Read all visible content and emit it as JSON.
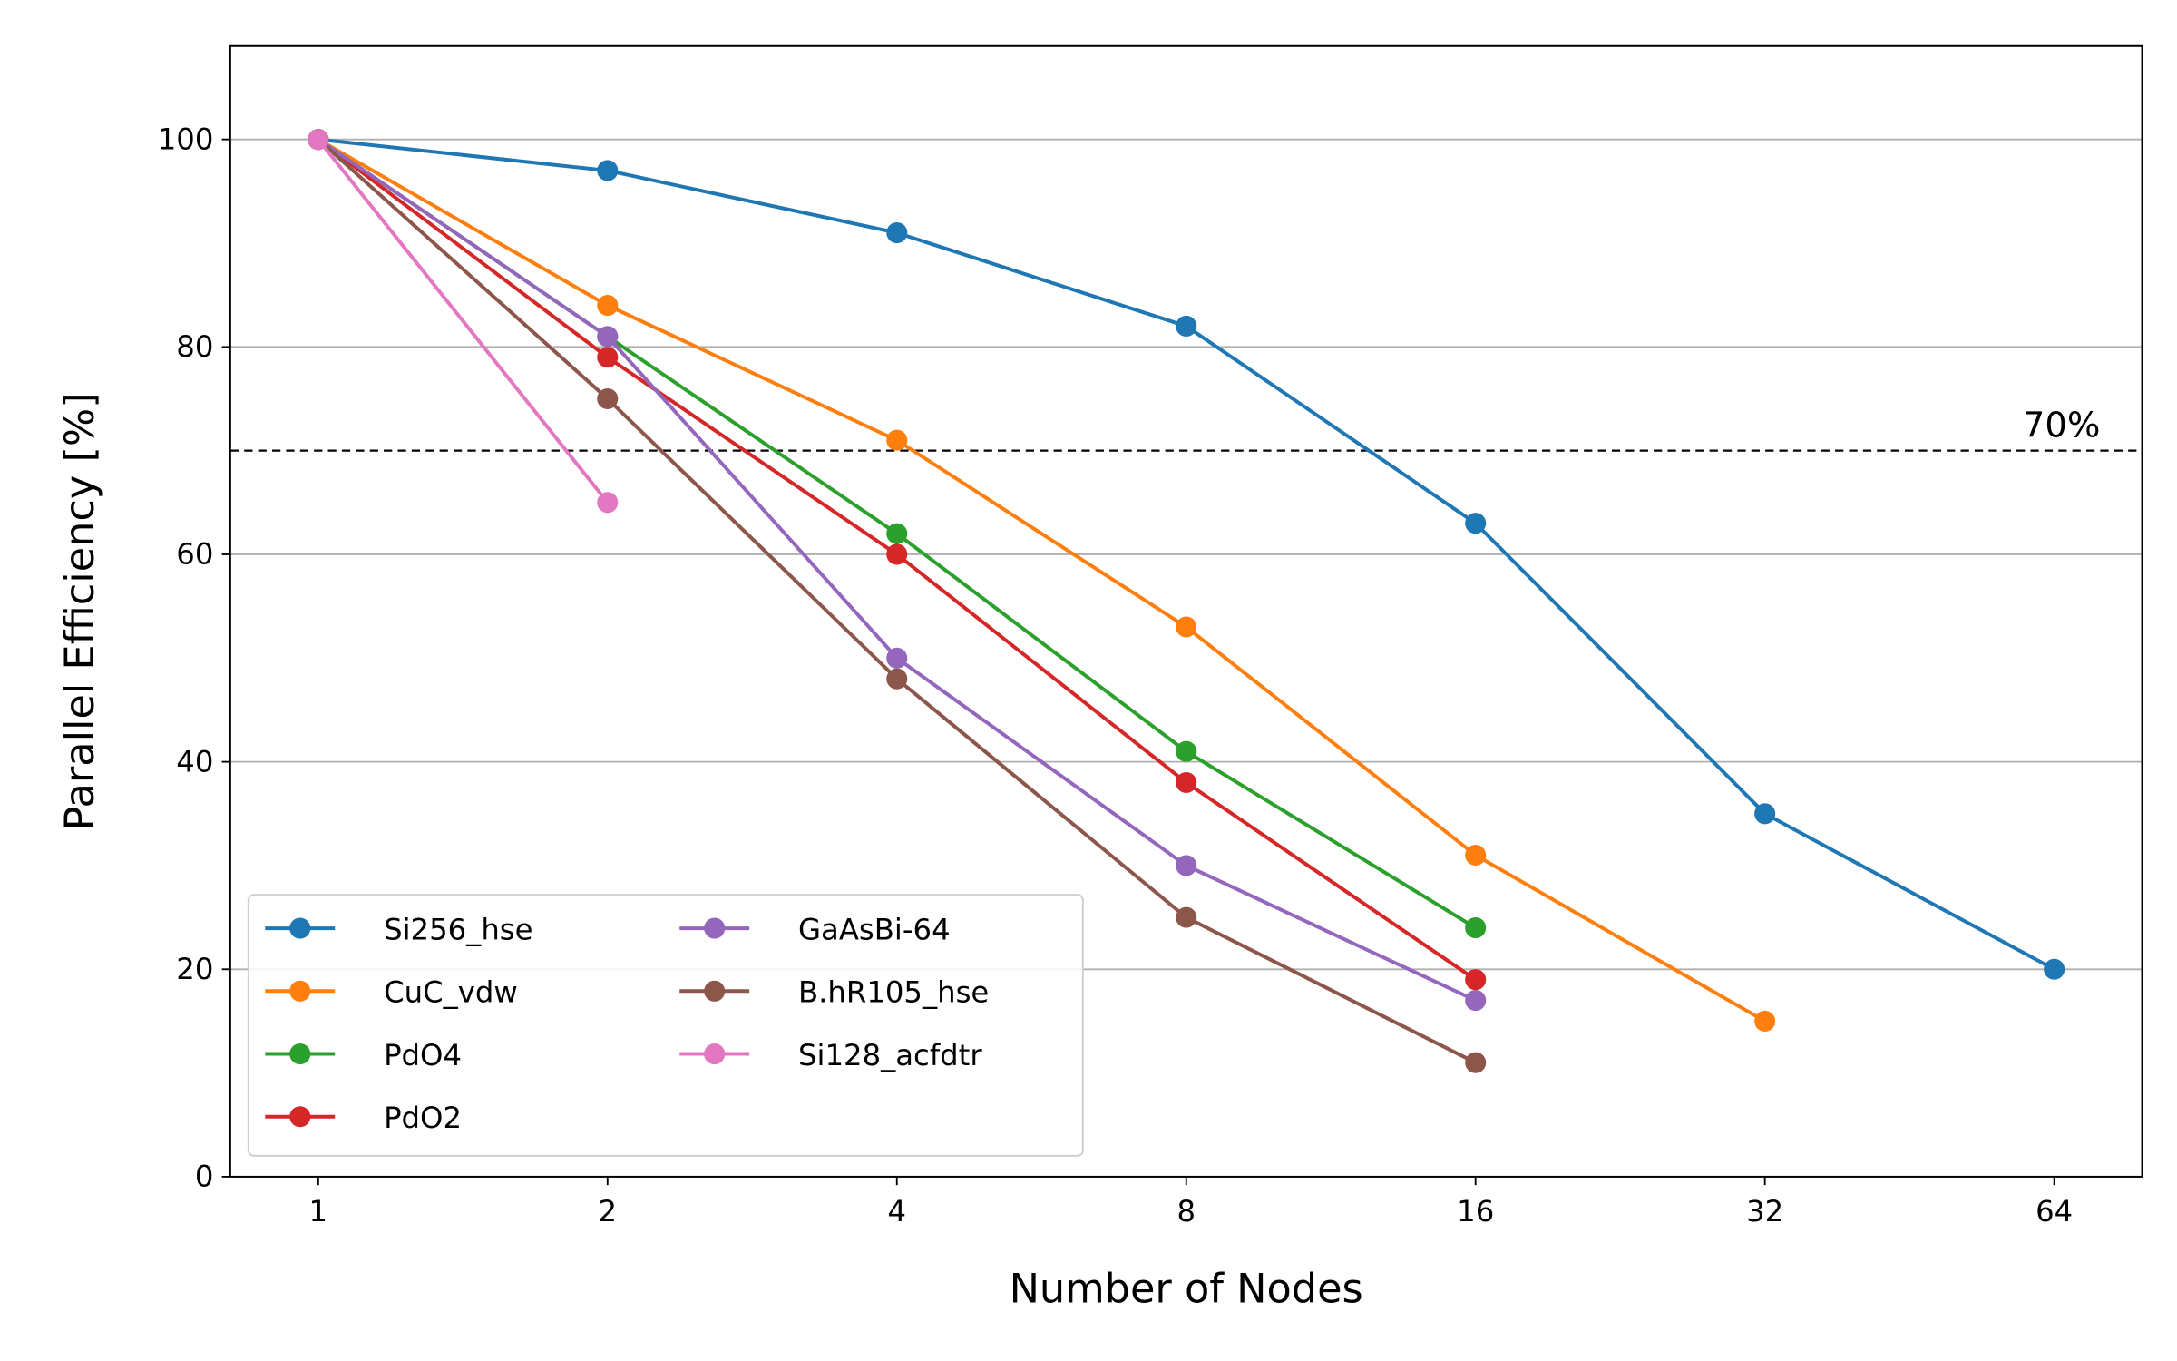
{
  "chart_data": {
    "type": "line",
    "title": "",
    "xlabel": "Number of Nodes",
    "ylabel": "Parallel Efficiency [%]",
    "x_scale": "log2",
    "x": [
      1,
      2,
      4,
      8,
      16,
      32,
      64
    ],
    "x_tick_labels": [
      "1",
      "2",
      "4",
      "8",
      "16",
      "32",
      "64"
    ],
    "xlim": [
      0.81,
      79
    ],
    "ylim": [
      0,
      109
    ],
    "y_ticks": [
      0,
      20,
      40,
      60,
      80,
      100
    ],
    "y_tick_labels": [
      "0",
      "20",
      "40",
      "60",
      "80",
      "100"
    ],
    "grid": "horizontal",
    "legend_placement": "lower-left",
    "reference_line": {
      "y": 70,
      "label": "70%",
      "style": "dashed",
      "color": "#000000"
    },
    "series": [
      {
        "name": "Si256_hse",
        "color": "#1f77b4",
        "x": [
          1,
          2,
          4,
          8,
          16,
          32,
          64
        ],
        "values": [
          100,
          97,
          91,
          82,
          63,
          35,
          20
        ]
      },
      {
        "name": "CuC_vdw",
        "color": "#ff7f0e",
        "x": [
          1,
          2,
          4,
          8,
          16,
          32
        ],
        "values": [
          100,
          84,
          71,
          53,
          31,
          15
        ]
      },
      {
        "name": "PdO4",
        "color": "#2ca02c",
        "x": [
          1,
          2,
          4,
          8,
          16
        ],
        "values": [
          100,
          81,
          62,
          41,
          24
        ]
      },
      {
        "name": "PdO2",
        "color": "#d62728",
        "x": [
          1,
          2,
          4,
          8,
          16
        ],
        "values": [
          100,
          79,
          60,
          38,
          19
        ]
      },
      {
        "name": "GaAsBi-64",
        "color": "#9467bd",
        "x": [
          1,
          2,
          4,
          8,
          16
        ],
        "values": [
          100,
          81,
          50,
          30,
          17
        ]
      },
      {
        "name": "B.hR105_hse",
        "color": "#8c564b",
        "x": [
          1,
          2,
          4,
          8,
          16
        ],
        "values": [
          100,
          75,
          48,
          25,
          11
        ]
      },
      {
        "name": "Si128_acfdtr",
        "color": "#e377c2",
        "x": [
          1,
          2
        ],
        "values": [
          100,
          65
        ]
      }
    ]
  }
}
